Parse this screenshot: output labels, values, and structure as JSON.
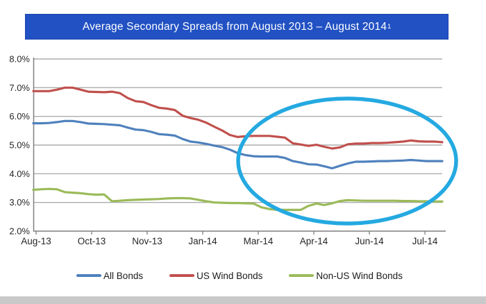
{
  "title": {
    "text": "Average Secondary Spreads from August 2013 –  August 2014",
    "superscript": "1"
  },
  "colors": {
    "banner_bg": "#2151C3",
    "banner_text": "#FFFFFF",
    "gridline": "#ADADAD",
    "axis": "#7F7F7F",
    "tick_label": "#262626",
    "highlight_ellipse": "#24A9E1"
  },
  "chart_data": {
    "type": "line",
    "title": "Average Secondary Spreads from August 2013 – August 2014¹",
    "xlabel": "",
    "ylabel": "",
    "ylim": [
      2.0,
      8.0
    ],
    "y_step": 1.0,
    "grid": "horizontal",
    "legend_position": "bottom",
    "y_tick_labels": [
      "8.0%",
      "7.0%",
      "6.0%",
      "5.0%",
      "4.0%",
      "3.0%",
      "2.0%"
    ],
    "x_tick_labels": [
      "Aug-13",
      "Oct-13",
      "Nov-13",
      "Jan-14",
      "Mar-14",
      "Apr-14",
      "Jun-14",
      "Jul-14"
    ],
    "series": [
      {
        "name": "All Bonds",
        "color": "#4F81BD",
        "values": [
          5.76,
          5.76,
          5.77,
          5.8,
          5.84,
          5.84,
          5.8,
          5.75,
          5.74,
          5.73,
          5.71,
          5.69,
          5.61,
          5.54,
          5.52,
          5.46,
          5.38,
          5.36,
          5.33,
          5.21,
          5.12,
          5.09,
          5.04,
          4.98,
          4.93,
          4.84,
          4.72,
          4.65,
          4.61,
          4.6,
          4.6,
          4.6,
          4.55,
          4.44,
          4.39,
          4.33,
          4.32,
          4.26,
          4.19,
          4.28,
          4.36,
          4.42,
          4.42,
          4.43,
          4.44,
          4.44,
          4.45,
          4.46,
          4.48,
          4.46,
          4.44,
          4.44,
          4.44
        ]
      },
      {
        "name": "US Wind Bonds",
        "color": "#C0504D",
        "values": [
          6.88,
          6.88,
          6.88,
          6.93,
          7.0,
          7.0,
          6.93,
          6.86,
          6.85,
          6.84,
          6.86,
          6.81,
          6.64,
          6.53,
          6.5,
          6.39,
          6.3,
          6.27,
          6.22,
          6.02,
          5.94,
          5.88,
          5.78,
          5.64,
          5.51,
          5.35,
          5.28,
          5.31,
          5.32,
          5.32,
          5.32,
          5.29,
          5.26,
          5.06,
          5.02,
          4.97,
          5.01,
          4.94,
          4.88,
          4.92,
          5.03,
          5.05,
          5.05,
          5.07,
          5.07,
          5.08,
          5.1,
          5.12,
          5.16,
          5.13,
          5.12,
          5.12,
          5.1
        ]
      },
      {
        "name": "Non-US Wind Bonds",
        "color": "#9BBB59",
        "values": [
          3.44,
          3.46,
          3.47,
          3.46,
          3.36,
          3.34,
          3.32,
          3.29,
          3.27,
          3.28,
          3.04,
          3.06,
          3.08,
          3.09,
          3.1,
          3.11,
          3.12,
          3.14,
          3.15,
          3.15,
          3.14,
          3.09,
          3.04,
          3.0,
          2.99,
          2.98,
          2.98,
          2.97,
          2.96,
          2.83,
          2.77,
          2.74,
          2.74,
          2.74,
          2.74,
          2.88,
          2.96,
          2.91,
          2.97,
          3.05,
          3.08,
          3.07,
          3.06,
          3.06,
          3.06,
          3.06,
          3.06,
          3.05,
          3.05,
          3.04,
          3.04,
          3.03,
          3.03
        ]
      }
    ],
    "annotation": {
      "type": "ellipse",
      "color": "#24A9E1",
      "highlights": "Mar-14 through Aug-14 region of all three series"
    }
  },
  "legend": {
    "items": [
      {
        "label": "All Bonds"
      },
      {
        "label": "US Wind Bonds"
      },
      {
        "label": "Non-US Wind Bonds"
      }
    ]
  }
}
